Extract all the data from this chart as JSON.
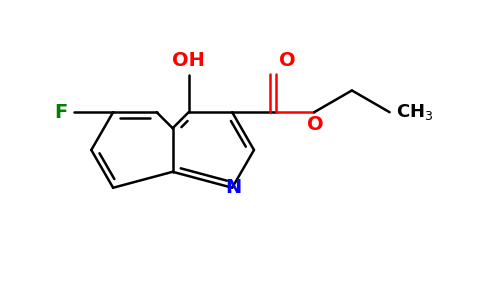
{
  "background_color": "#ffffff",
  "atom_colors": {
    "C": "#000000",
    "N": "#0000ff",
    "O": "#ff0000",
    "F": "#008000"
  },
  "bond_color": "#000000",
  "bond_width": 1.8,
  "font_size_atoms": 14,
  "scale": 0.44
}
